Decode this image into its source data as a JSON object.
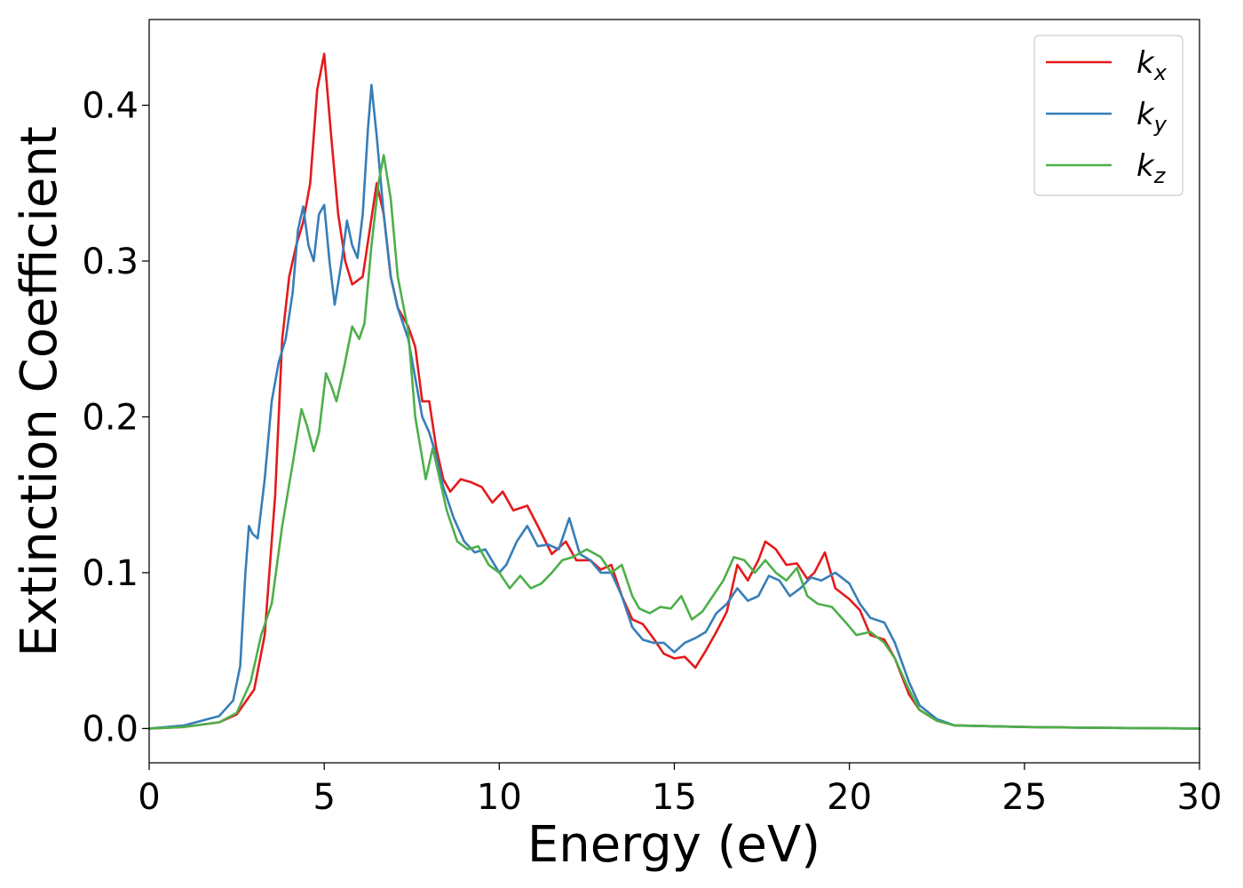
{
  "chart_data": {
    "type": "line",
    "title": "",
    "xlabel": "Energy (eV)",
    "ylabel": "Extinction Coefficient",
    "xlim": [
      0,
      30
    ],
    "ylim": [
      -0.022,
      0.455
    ],
    "xticks": [
      0,
      5,
      10,
      15,
      20,
      25,
      30
    ],
    "xtick_labels": [
      "0",
      "5",
      "10",
      "15",
      "20",
      "25",
      "30"
    ],
    "yticks": [
      0.0,
      0.1,
      0.2,
      0.3,
      0.4
    ],
    "ytick_labels": [
      "0.0",
      "0.1",
      "0.2",
      "0.3",
      "0.4"
    ],
    "grid": false,
    "legend_position": "top-right",
    "series": [
      {
        "name": "k_x",
        "label_main": "k",
        "label_sub": "x",
        "color": "#e41a1c",
        "points": [
          [
            0,
            0.0
          ],
          [
            1,
            0.001
          ],
          [
            2,
            0.004
          ],
          [
            2.5,
            0.009
          ],
          [
            3,
            0.025
          ],
          [
            3.3,
            0.06
          ],
          [
            3.6,
            0.15
          ],
          [
            3.8,
            0.25
          ],
          [
            4.0,
            0.29
          ],
          [
            4.2,
            0.31
          ],
          [
            4.4,
            0.325
          ],
          [
            4.6,
            0.35
          ],
          [
            4.8,
            0.41
          ],
          [
            5.0,
            0.433
          ],
          [
            5.2,
            0.38
          ],
          [
            5.4,
            0.33
          ],
          [
            5.6,
            0.3
          ],
          [
            5.8,
            0.285
          ],
          [
            6.1,
            0.29
          ],
          [
            6.3,
            0.32
          ],
          [
            6.5,
            0.35
          ],
          [
            6.7,
            0.33
          ],
          [
            6.9,
            0.29
          ],
          [
            7.1,
            0.27
          ],
          [
            7.4,
            0.258
          ],
          [
            7.6,
            0.245
          ],
          [
            7.8,
            0.21
          ],
          [
            8.0,
            0.21
          ],
          [
            8.2,
            0.18
          ],
          [
            8.4,
            0.16
          ],
          [
            8.6,
            0.152
          ],
          [
            8.9,
            0.16
          ],
          [
            9.2,
            0.158
          ],
          [
            9.5,
            0.155
          ],
          [
            9.8,
            0.145
          ],
          [
            10.1,
            0.152
          ],
          [
            10.4,
            0.14
          ],
          [
            10.8,
            0.143
          ],
          [
            11.1,
            0.13
          ],
          [
            11.5,
            0.112
          ],
          [
            11.9,
            0.12
          ],
          [
            12.2,
            0.108
          ],
          [
            12.6,
            0.108
          ],
          [
            12.9,
            0.102
          ],
          [
            13.2,
            0.105
          ],
          [
            13.5,
            0.085
          ],
          [
            13.8,
            0.07
          ],
          [
            14.1,
            0.067
          ],
          [
            14.4,
            0.058
          ],
          [
            14.7,
            0.048
          ],
          [
            15.0,
            0.045
          ],
          [
            15.3,
            0.046
          ],
          [
            15.6,
            0.039
          ],
          [
            15.9,
            0.05
          ],
          [
            16.2,
            0.062
          ],
          [
            16.5,
            0.075
          ],
          [
            16.8,
            0.105
          ],
          [
            17.1,
            0.095
          ],
          [
            17.4,
            0.108
          ],
          [
            17.6,
            0.12
          ],
          [
            17.9,
            0.115
          ],
          [
            18.2,
            0.105
          ],
          [
            18.5,
            0.106
          ],
          [
            18.8,
            0.096
          ],
          [
            19.0,
            0.1
          ],
          [
            19.3,
            0.113
          ],
          [
            19.6,
            0.09
          ],
          [
            20.0,
            0.083
          ],
          [
            20.3,
            0.076
          ],
          [
            20.6,
            0.06
          ],
          [
            21.0,
            0.057
          ],
          [
            21.3,
            0.045
          ],
          [
            21.7,
            0.022
          ],
          [
            22.0,
            0.012
          ],
          [
            22.5,
            0.005
          ],
          [
            23,
            0.002
          ],
          [
            25,
            0.001
          ],
          [
            27,
            0.0005
          ],
          [
            30,
            0.0
          ]
        ]
      },
      {
        "name": "k_y",
        "label_main": "k",
        "label_sub": "y",
        "color": "#377eb8",
        "points": [
          [
            0,
            0.0
          ],
          [
            1,
            0.002
          ],
          [
            2,
            0.008
          ],
          [
            2.4,
            0.018
          ],
          [
            2.6,
            0.04
          ],
          [
            2.75,
            0.1
          ],
          [
            2.85,
            0.13
          ],
          [
            2.95,
            0.125
          ],
          [
            3.1,
            0.122
          ],
          [
            3.3,
            0.16
          ],
          [
            3.5,
            0.21
          ],
          [
            3.7,
            0.235
          ],
          [
            3.9,
            0.25
          ],
          [
            4.1,
            0.28
          ],
          [
            4.25,
            0.32
          ],
          [
            4.4,
            0.335
          ],
          [
            4.55,
            0.31
          ],
          [
            4.7,
            0.3
          ],
          [
            4.85,
            0.33
          ],
          [
            5.0,
            0.336
          ],
          [
            5.15,
            0.3
          ],
          [
            5.3,
            0.272
          ],
          [
            5.5,
            0.3
          ],
          [
            5.65,
            0.326
          ],
          [
            5.8,
            0.31
          ],
          [
            5.95,
            0.302
          ],
          [
            6.1,
            0.33
          ],
          [
            6.25,
            0.385
          ],
          [
            6.35,
            0.413
          ],
          [
            6.5,
            0.38
          ],
          [
            6.7,
            0.33
          ],
          [
            6.9,
            0.29
          ],
          [
            7.1,
            0.27
          ],
          [
            7.4,
            0.25
          ],
          [
            7.6,
            0.225
          ],
          [
            7.8,
            0.2
          ],
          [
            8.0,
            0.19
          ],
          [
            8.2,
            0.175
          ],
          [
            8.4,
            0.155
          ],
          [
            8.7,
            0.135
          ],
          [
            9.0,
            0.12
          ],
          [
            9.3,
            0.113
          ],
          [
            9.6,
            0.115
          ],
          [
            10.0,
            0.1
          ],
          [
            10.2,
            0.105
          ],
          [
            10.5,
            0.12
          ],
          [
            10.8,
            0.13
          ],
          [
            11.1,
            0.117
          ],
          [
            11.4,
            0.118
          ],
          [
            11.7,
            0.115
          ],
          [
            12.0,
            0.135
          ],
          [
            12.3,
            0.112
          ],
          [
            12.6,
            0.108
          ],
          [
            12.9,
            0.1
          ],
          [
            13.2,
            0.1
          ],
          [
            13.5,
            0.085
          ],
          [
            13.8,
            0.065
          ],
          [
            14.1,
            0.057
          ],
          [
            14.4,
            0.055
          ],
          [
            14.7,
            0.055
          ],
          [
            15.0,
            0.049
          ],
          [
            15.3,
            0.055
          ],
          [
            15.6,
            0.058
          ],
          [
            15.9,
            0.062
          ],
          [
            16.2,
            0.074
          ],
          [
            16.5,
            0.08
          ],
          [
            16.8,
            0.09
          ],
          [
            17.1,
            0.082
          ],
          [
            17.4,
            0.085
          ],
          [
            17.7,
            0.098
          ],
          [
            18.0,
            0.095
          ],
          [
            18.3,
            0.085
          ],
          [
            18.6,
            0.09
          ],
          [
            18.9,
            0.097
          ],
          [
            19.2,
            0.095
          ],
          [
            19.6,
            0.1
          ],
          [
            20.0,
            0.093
          ],
          [
            20.3,
            0.08
          ],
          [
            20.6,
            0.071
          ],
          [
            21.0,
            0.068
          ],
          [
            21.3,
            0.055
          ],
          [
            21.7,
            0.03
          ],
          [
            22.0,
            0.015
          ],
          [
            22.5,
            0.006
          ],
          [
            23,
            0.002
          ],
          [
            25,
            0.001
          ],
          [
            27,
            0.0005
          ],
          [
            30,
            0.0
          ]
        ]
      },
      {
        "name": "k_z",
        "label_main": "k",
        "label_sub": "z",
        "color": "#4daf4a",
        "points": [
          [
            0,
            0.0
          ],
          [
            1,
            0.001
          ],
          [
            2,
            0.004
          ],
          [
            2.5,
            0.01
          ],
          [
            2.9,
            0.03
          ],
          [
            3.2,
            0.06
          ],
          [
            3.5,
            0.08
          ],
          [
            3.8,
            0.13
          ],
          [
            4.1,
            0.17
          ],
          [
            4.35,
            0.205
          ],
          [
            4.5,
            0.195
          ],
          [
            4.7,
            0.178
          ],
          [
            4.85,
            0.19
          ],
          [
            5.05,
            0.228
          ],
          [
            5.2,
            0.22
          ],
          [
            5.35,
            0.21
          ],
          [
            5.55,
            0.23
          ],
          [
            5.8,
            0.258
          ],
          [
            6.0,
            0.25
          ],
          [
            6.15,
            0.26
          ],
          [
            6.35,
            0.31
          ],
          [
            6.55,
            0.35
          ],
          [
            6.7,
            0.368
          ],
          [
            6.9,
            0.34
          ],
          [
            7.1,
            0.29
          ],
          [
            7.4,
            0.255
          ],
          [
            7.6,
            0.2
          ],
          [
            7.9,
            0.16
          ],
          [
            8.1,
            0.18
          ],
          [
            8.3,
            0.16
          ],
          [
            8.5,
            0.14
          ],
          [
            8.8,
            0.12
          ],
          [
            9.1,
            0.115
          ],
          [
            9.4,
            0.117
          ],
          [
            9.7,
            0.105
          ],
          [
            10.0,
            0.1
          ],
          [
            10.3,
            0.09
          ],
          [
            10.6,
            0.098
          ],
          [
            10.9,
            0.09
          ],
          [
            11.2,
            0.093
          ],
          [
            11.5,
            0.1
          ],
          [
            11.8,
            0.108
          ],
          [
            12.1,
            0.11
          ],
          [
            12.5,
            0.115
          ],
          [
            12.9,
            0.11
          ],
          [
            13.2,
            0.1
          ],
          [
            13.5,
            0.105
          ],
          [
            13.8,
            0.085
          ],
          [
            14.0,
            0.077
          ],
          [
            14.3,
            0.074
          ],
          [
            14.6,
            0.078
          ],
          [
            14.9,
            0.077
          ],
          [
            15.2,
            0.085
          ],
          [
            15.5,
            0.07
          ],
          [
            15.8,
            0.075
          ],
          [
            16.1,
            0.085
          ],
          [
            16.4,
            0.095
          ],
          [
            16.7,
            0.11
          ],
          [
            17.0,
            0.108
          ],
          [
            17.3,
            0.1
          ],
          [
            17.6,
            0.108
          ],
          [
            17.9,
            0.1
          ],
          [
            18.2,
            0.095
          ],
          [
            18.5,
            0.103
          ],
          [
            18.8,
            0.085
          ],
          [
            19.1,
            0.08
          ],
          [
            19.5,
            0.078
          ],
          [
            19.9,
            0.068
          ],
          [
            20.2,
            0.06
          ],
          [
            20.6,
            0.062
          ],
          [
            21.0,
            0.055
          ],
          [
            21.3,
            0.045
          ],
          [
            21.7,
            0.025
          ],
          [
            22.0,
            0.012
          ],
          [
            22.5,
            0.005
          ],
          [
            23,
            0.002
          ],
          [
            25,
            0.001
          ],
          [
            27,
            0.0005
          ],
          [
            30,
            0.0
          ]
        ]
      }
    ]
  }
}
